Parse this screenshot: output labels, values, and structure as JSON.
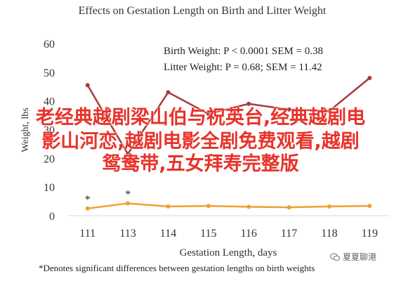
{
  "chart_data": {
    "type": "line",
    "title": "Effects on Gestation Length on Birth and Litter Weight",
    "xlabel": "Gestation Length, days",
    "ylabel": "Weight, lbs",
    "categories": [
      "111",
      "113",
      "114",
      "115",
      "116",
      "117",
      "118",
      "119"
    ],
    "ylim": [
      0,
      60
    ],
    "yticks": [
      0,
      10,
      20,
      30,
      40,
      50,
      60
    ],
    "grid": false,
    "series": [
      {
        "name": "Litter Weight",
        "color": "#a83a3c",
        "values": [
          45.5,
          21.5,
          43,
          35.5,
          39,
          37,
          36.5,
          48
        ]
      },
      {
        "name": "Birth Weight",
        "color": "#f0a030",
        "values": [
          2.5,
          4.3,
          3.2,
          3.4,
          3.1,
          2.9,
          3.2,
          3.4
        ]
      }
    ],
    "annotations": [
      {
        "text": "Birth Weight: P < 0.0001 SEM = 0.38"
      },
      {
        "text": "Litter Weight: P = 0.68; SEM = 11.42"
      }
    ],
    "markers": [
      {
        "category": "111",
        "text": "*"
      },
      {
        "category": "113",
        "text": "*"
      }
    ],
    "footnote": "*Denotes significant differences between gestation lengths on birth weights"
  },
  "overlay": {
    "line1": "老经典越剧梁山伯与祝英台,经典越剧电",
    "line2": "影山河恋,越剧电影全剧免费观看,越剧",
    "line3": "鸳鸯带,五女拜寿完整版"
  },
  "watermark": {
    "text": "夏夏聊港",
    "icon": "wechat-icon"
  }
}
